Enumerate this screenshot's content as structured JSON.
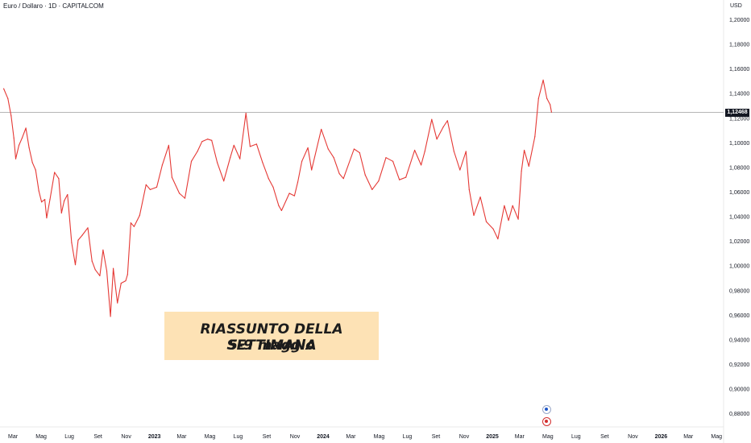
{
  "header": {
    "symbol_title": "Euro / Dollaro · 1D · CAPITALCOM",
    "currency": "USD"
  },
  "price_tag": "1,12468",
  "banner": {
    "line1": "RIASSUNTO DELLA SETTIMANA",
    "line2": "5-9 maggio"
  },
  "colors": {
    "line": "#e53935",
    "banner_bg": "#fde2b5",
    "price_line": "#9e9e9e",
    "price_tag_bg": "#131722",
    "event_blue": "#1e56c8",
    "event_red": "#d32f2f"
  },
  "events": [
    {
      "icon": "economic-event-icon"
    },
    {
      "icon": "us-flag-event-icon"
    }
  ],
  "chart_data": {
    "type": "line",
    "title": "Euro / Dollaro · 1D · CAPITALCOM",
    "ylabel": "USD",
    "x_range": [
      "2022-02",
      "2026-06"
    ],
    "ylim": [
      0.868,
      1.216
    ],
    "y_ticks": [
      "1,20000",
      "1,18000",
      "1,16000",
      "1,14000",
      "1,12000",
      "1,10000",
      "1,08000",
      "1,06000",
      "1,04000",
      "1,02000",
      "1,00000",
      "0,98000",
      "0,96000",
      "0,94000",
      "0,92000",
      "0,90000",
      "0,88000"
    ],
    "y_tick_values": [
      1.2,
      1.18,
      1.16,
      1.14,
      1.12,
      1.1,
      1.08,
      1.06,
      1.04,
      1.02,
      1.0,
      0.98,
      0.96,
      0.94,
      0.92,
      0.9,
      0.88
    ],
    "x_ticks": [
      {
        "label": "Mar",
        "date": "2022-03-01",
        "bold": false
      },
      {
        "label": "Mag",
        "date": "2022-05-01",
        "bold": false
      },
      {
        "label": "Lug",
        "date": "2022-07-01",
        "bold": false
      },
      {
        "label": "Set",
        "date": "2022-09-01",
        "bold": false
      },
      {
        "label": "Nov",
        "date": "2022-11-01",
        "bold": false
      },
      {
        "label": "2023",
        "date": "2023-01-01",
        "bold": true
      },
      {
        "label": "Mar",
        "date": "2023-03-01",
        "bold": false
      },
      {
        "label": "Mag",
        "date": "2023-05-01",
        "bold": false
      },
      {
        "label": "Lug",
        "date": "2023-07-01",
        "bold": false
      },
      {
        "label": "Set",
        "date": "2023-09-01",
        "bold": false
      },
      {
        "label": "Nov",
        "date": "2023-11-01",
        "bold": false
      },
      {
        "label": "2024",
        "date": "2024-01-01",
        "bold": true
      },
      {
        "label": "Mar",
        "date": "2024-03-01",
        "bold": false
      },
      {
        "label": "Mag",
        "date": "2024-05-01",
        "bold": false
      },
      {
        "label": "Lug",
        "date": "2024-07-01",
        "bold": false
      },
      {
        "label": "Set",
        "date": "2024-09-01",
        "bold": false
      },
      {
        "label": "Nov",
        "date": "2024-11-01",
        "bold": false
      },
      {
        "label": "2025",
        "date": "2025-01-01",
        "bold": true
      },
      {
        "label": "Mar",
        "date": "2025-03-01",
        "bold": false
      },
      {
        "label": "Mag",
        "date": "2025-05-01",
        "bold": false
      },
      {
        "label": "Lug",
        "date": "2025-07-01",
        "bold": false
      },
      {
        "label": "Set",
        "date": "2025-09-01",
        "bold": false
      },
      {
        "label": "Nov",
        "date": "2025-11-01",
        "bold": false
      },
      {
        "label": "2026",
        "date": "2026-01-01",
        "bold": true
      },
      {
        "label": "Mar",
        "date": "2026-03-01",
        "bold": false
      },
      {
        "label": "Mag",
        "date": "2026-05-01",
        "bold": false
      }
    ],
    "last_price": 1.12468,
    "grid": false,
    "series": [
      {
        "points": [
          [
            "2022-02-09",
            1.144
          ],
          [
            "2022-02-18",
            1.136
          ],
          [
            "2022-02-25",
            1.122
          ],
          [
            "2022-03-03",
            1.104
          ],
          [
            "2022-03-07",
            1.087
          ],
          [
            "2022-03-14",
            1.098
          ],
          [
            "2022-03-21",
            1.104
          ],
          [
            "2022-03-29",
            1.112
          ],
          [
            "2022-04-05",
            1.096
          ],
          [
            "2022-04-12",
            1.084
          ],
          [
            "2022-04-19",
            1.078
          ],
          [
            "2022-04-26",
            1.061
          ],
          [
            "2022-05-02",
            1.052
          ],
          [
            "2022-05-09",
            1.054
          ],
          [
            "2022-05-13",
            1.039
          ],
          [
            "2022-05-20",
            1.054
          ],
          [
            "2022-05-30",
            1.076
          ],
          [
            "2022-06-08",
            1.071
          ],
          [
            "2022-06-14",
            1.043
          ],
          [
            "2022-06-20",
            1.053
          ],
          [
            "2022-06-27",
            1.058
          ],
          [
            "2022-07-06",
            1.019
          ],
          [
            "2022-07-14",
            1.001
          ],
          [
            "2022-07-20",
            1.021
          ],
          [
            "2022-07-29",
            1.025
          ],
          [
            "2022-08-10",
            1.031
          ],
          [
            "2022-08-19",
            1.004
          ],
          [
            "2022-08-26",
            0.997
          ],
          [
            "2022-09-05",
            0.992
          ],
          [
            "2022-09-12",
            1.013
          ],
          [
            "2022-09-20",
            0.996
          ],
          [
            "2022-09-28",
            0.959
          ],
          [
            "2022-10-04",
            0.998
          ],
          [
            "2022-10-13",
            0.97
          ],
          [
            "2022-10-21",
            0.986
          ],
          [
            "2022-10-31",
            0.988
          ],
          [
            "2022-11-04",
            0.993
          ],
          [
            "2022-11-11",
            1.035
          ],
          [
            "2022-11-18",
            1.032
          ],
          [
            "2022-11-30",
            1.041
          ],
          [
            "2022-12-14",
            1.066
          ],
          [
            "2022-12-23",
            1.062
          ],
          [
            "2023-01-06",
            1.064
          ],
          [
            "2023-01-18",
            1.082
          ],
          [
            "2023-02-01",
            1.098
          ],
          [
            "2023-02-08",
            1.072
          ],
          [
            "2023-02-24",
            1.059
          ],
          [
            "2023-03-08",
            1.055
          ],
          [
            "2023-03-22",
            1.085
          ],
          [
            "2023-04-04",
            1.093
          ],
          [
            "2023-04-14",
            1.101
          ],
          [
            "2023-04-26",
            1.103
          ],
          [
            "2023-05-05",
            1.102
          ],
          [
            "2023-05-17",
            1.084
          ],
          [
            "2023-05-31",
            1.069
          ],
          [
            "2023-06-14",
            1.088
          ],
          [
            "2023-06-22",
            1.098
          ],
          [
            "2023-07-05",
            1.087
          ],
          [
            "2023-07-18",
            1.124
          ],
          [
            "2023-07-27",
            1.097
          ],
          [
            "2023-08-10",
            1.099
          ],
          [
            "2023-08-23",
            1.084
          ],
          [
            "2023-09-05",
            1.071
          ],
          [
            "2023-09-15",
            1.064
          ],
          [
            "2023-09-27",
            1.049
          ],
          [
            "2023-10-03",
            1.045
          ],
          [
            "2023-10-20",
            1.059
          ],
          [
            "2023-10-31",
            1.057
          ],
          [
            "2023-11-07",
            1.068
          ],
          [
            "2023-11-16",
            1.085
          ],
          [
            "2023-11-29",
            1.096
          ],
          [
            "2023-12-07",
            1.078
          ],
          [
            "2023-12-28",
            1.111
          ],
          [
            "2024-01-12",
            1.095
          ],
          [
            "2024-01-24",
            1.088
          ],
          [
            "2024-02-05",
            1.075
          ],
          [
            "2024-02-14",
            1.071
          ],
          [
            "2024-03-08",
            1.095
          ],
          [
            "2024-03-20",
            1.092
          ],
          [
            "2024-04-01",
            1.074
          ],
          [
            "2024-04-16",
            1.062
          ],
          [
            "2024-04-30",
            1.069
          ],
          [
            "2024-05-16",
            1.088
          ],
          [
            "2024-05-31",
            1.085
          ],
          [
            "2024-06-14",
            1.07
          ],
          [
            "2024-06-28",
            1.072
          ],
          [
            "2024-07-17",
            1.094
          ],
          [
            "2024-07-31",
            1.082
          ],
          [
            "2024-08-08",
            1.093
          ],
          [
            "2024-08-23",
            1.119
          ],
          [
            "2024-09-03",
            1.103
          ],
          [
            "2024-09-17",
            1.113
          ],
          [
            "2024-09-26",
            1.118
          ],
          [
            "2024-10-10",
            1.093
          ],
          [
            "2024-10-23",
            1.078
          ],
          [
            "2024-11-05",
            1.093
          ],
          [
            "2024-11-12",
            1.062
          ],
          [
            "2024-11-22",
            1.041
          ],
          [
            "2024-12-06",
            1.056
          ],
          [
            "2024-12-19",
            1.036
          ],
          [
            "2025-01-03",
            1.03
          ],
          [
            "2025-01-13",
            1.022
          ],
          [
            "2025-01-27",
            1.049
          ],
          [
            "2025-02-05",
            1.037
          ],
          [
            "2025-02-14",
            1.049
          ],
          [
            "2025-02-26",
            1.038
          ],
          [
            "2025-03-05",
            1.077
          ],
          [
            "2025-03-11",
            1.094
          ],
          [
            "2025-03-21",
            1.081
          ],
          [
            "2025-04-03",
            1.105
          ],
          [
            "2025-04-11",
            1.136
          ],
          [
            "2025-04-21",
            1.151
          ],
          [
            "2025-04-29",
            1.136
          ],
          [
            "2025-05-06",
            1.131
          ],
          [
            "2025-05-09",
            1.125
          ]
        ]
      }
    ]
  }
}
